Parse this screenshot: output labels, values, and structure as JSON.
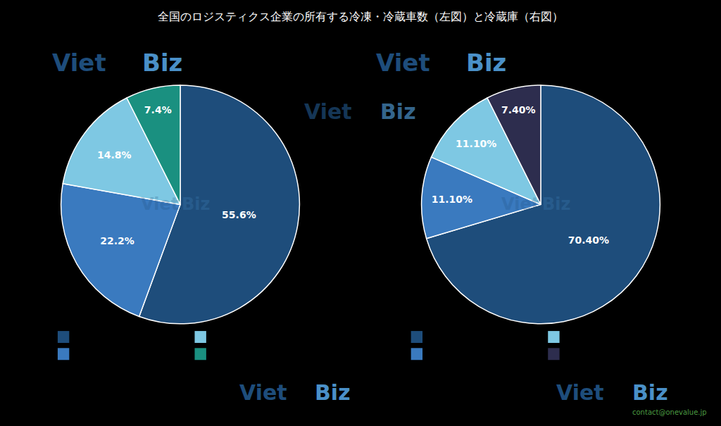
{
  "chart_data": [
    {
      "type": "pie",
      "title": "全国のロジスティクス企業の所有する冷凍・冷蔵車数（左図）と冷蔵庫（右図）",
      "values": [
        55.6,
        22.2,
        14.8,
        7.4
      ],
      "value_labels": [
        "55.6%",
        "22.2%",
        "14.8%",
        "7.4%"
      ],
      "colors": [
        "#1e4d7b",
        "#3a7abf",
        "#7ec8e3",
        "#1a9080"
      ],
      "data_labels": true,
      "annotations": [
        {
          "text": "Viet",
          "color": "#1e4d7b"
        },
        {
          "text": "Biz",
          "color": "#4a90c8"
        },
        {
          "text": "contact@onevalue.jp",
          "color": "#4a9a40"
        }
      ]
    },
    {
      "type": "pie",
      "values": [
        70.4,
        11.1,
        11.1,
        7.4
      ],
      "value_labels": [
        "70.40%",
        "11.10%",
        "11.10%",
        "7.40%"
      ],
      "colors": [
        "#1e4d7b",
        "#3a7abf",
        "#7ec8e3",
        "#2d2d4e"
      ],
      "data_labels": true
    }
  ]
}
